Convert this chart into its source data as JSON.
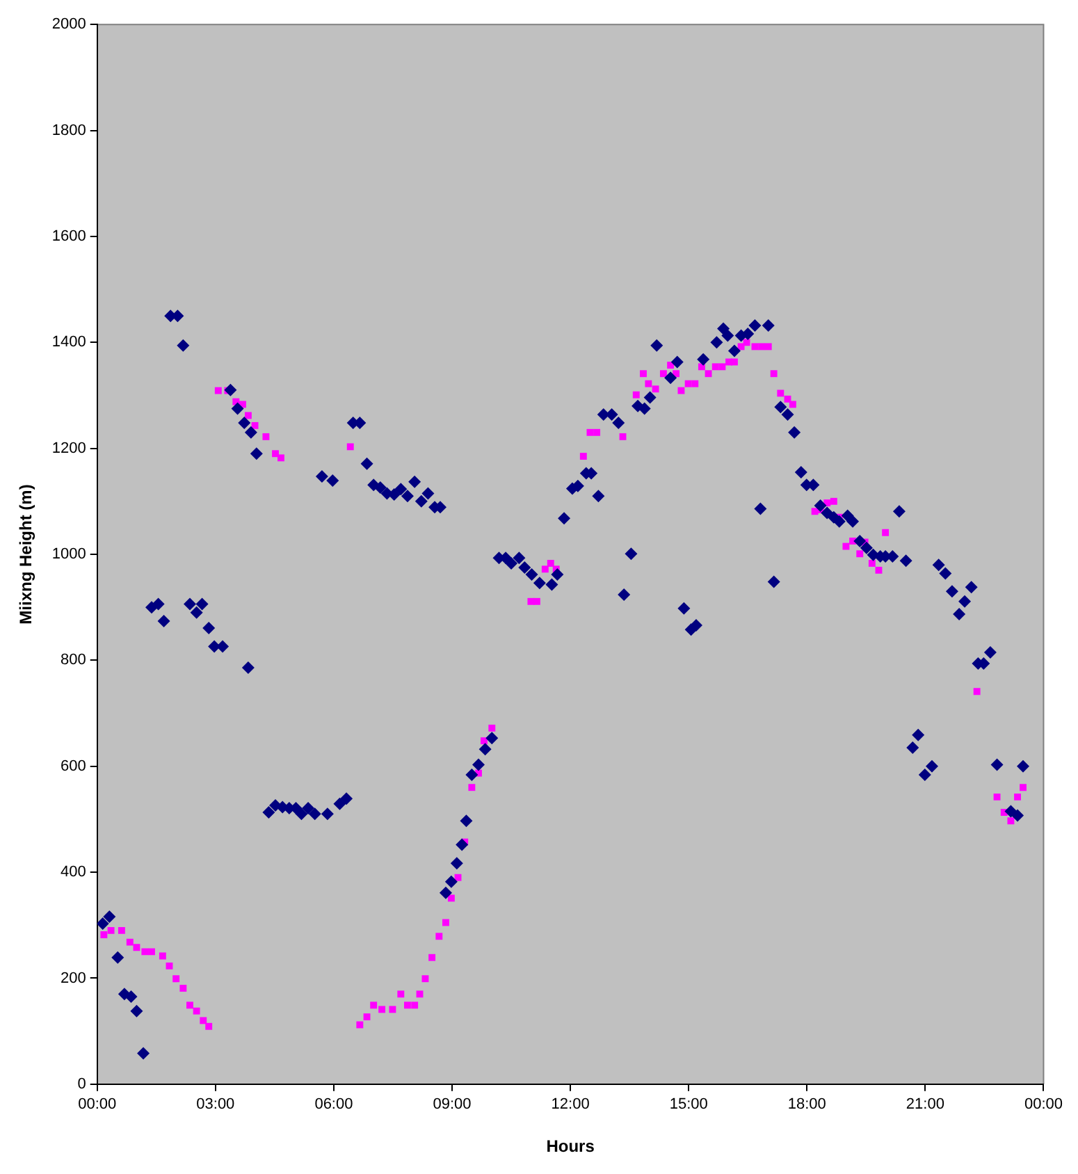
{
  "chart_data": {
    "type": "scatter",
    "xlabel": "Hours",
    "ylabel": "Miixng Height (m)",
    "xlim": [
      0,
      24
    ],
    "xticks": [
      {
        "value": 0,
        "label": "00:00"
      },
      {
        "value": 3,
        "label": "03:00"
      },
      {
        "value": 6,
        "label": "06:00"
      },
      {
        "value": 9,
        "label": "09:00"
      },
      {
        "value": 12,
        "label": "12:00"
      },
      {
        "value": 15,
        "label": "15:00"
      },
      {
        "value": 18,
        "label": "18:00"
      },
      {
        "value": 21,
        "label": "21:00"
      },
      {
        "value": 24,
        "label": "00:00"
      }
    ],
    "ylim": [
      0,
      2000
    ],
    "yticks": [
      0,
      200,
      400,
      600,
      800,
      1000,
      1200,
      1400,
      1600,
      1800,
      2000
    ],
    "grid": false,
    "legend": false,
    "series": [
      {
        "color": "#000080",
        "marker": "diamond",
        "x": [
          0.14,
          0.31,
          0.52,
          0.69,
          0.86,
          1.0,
          1.17,
          1.38,
          1.55,
          1.69,
          1.86,
          2.04,
          2.18,
          2.35,
          2.52,
          2.66,
          2.83,
          2.97,
          3.18,
          3.38,
          3.56,
          3.73,
          3.83,
          3.9,
          4.04,
          4.35,
          4.52,
          4.7,
          4.87,
          5.04,
          5.18,
          5.35,
          5.52,
          5.7,
          5.84,
          5.97,
          6.15,
          6.32,
          6.49,
          6.66,
          6.84,
          7.01,
          7.18,
          7.35,
          7.53,
          7.7,
          7.87,
          8.05,
          8.22,
          8.39,
          8.56,
          8.7,
          8.84,
          8.98,
          9.12,
          9.25,
          9.36,
          9.5,
          9.67,
          9.84,
          10.01,
          10.19,
          10.36,
          10.5,
          10.7,
          10.84,
          11.02,
          11.22,
          11.53,
          11.67,
          11.84,
          12.05,
          12.19,
          12.4,
          12.53,
          12.71,
          12.84,
          13.05,
          13.22,
          13.36,
          13.54,
          13.71,
          13.88,
          14.02,
          14.19,
          14.54,
          14.71,
          14.88,
          15.06,
          15.19,
          15.37,
          15.71,
          15.88,
          15.99,
          16.16,
          16.33,
          16.5,
          16.68,
          16.82,
          17.02,
          17.16,
          17.33,
          17.51,
          17.68,
          17.85,
          17.99,
          18.16,
          18.34,
          18.51,
          18.68,
          18.82,
          19.03,
          19.16,
          19.34,
          19.51,
          19.68,
          19.86,
          19.99,
          20.17,
          20.34,
          20.51,
          20.68,
          20.82,
          20.99,
          21.17,
          21.34,
          21.51,
          21.68,
          21.86,
          22.0,
          22.17,
          22.34,
          22.48,
          22.65,
          22.82,
          23.17,
          23.34,
          23.48
        ],
        "values": [
          303,
          316,
          239,
          170,
          165,
          138,
          58,
          900,
          906,
          874,
          1450,
          1450,
          1394,
          906,
          890,
          906,
          861,
          826,
          826,
          1310,
          1275,
          1248,
          786,
          1230,
          1190,
          513,
          526,
          523,
          521,
          521,
          510,
          521,
          510,
          1147,
          510,
          1139,
          529,
          539,
          1248,
          1248,
          1171,
          1131,
          1126,
          1115,
          1113,
          1123,
          1110,
          1137,
          1100,
          1115,
          1089,
          1089,
          361,
          382,
          417,
          452,
          497,
          584,
          603,
          632,
          653,
          993,
          993,
          983,
          993,
          975,
          962,
          946,
          943,
          962,
          1068,
          1124,
          1129,
          1153,
          1153,
          1110,
          1264,
          1264,
          1248,
          924,
          1001,
          1280,
          1275,
          1296,
          1394,
          1333,
          1363,
          898,
          858,
          866,
          1368,
          1400,
          1426,
          1413,
          1384,
          1413,
          1416,
          1432,
          1086,
          1432,
          948,
          1278,
          1264,
          1230,
          1155,
          1131,
          1131,
          1092,
          1078,
          1070,
          1062,
          1073,
          1062,
          1025,
          1012,
          999,
          996,
          996,
          996,
          1081,
          988,
          635,
          659,
          584,
          600,
          980,
          964,
          930,
          887,
          911,
          938,
          794,
          794,
          815,
          603,
          515,
          507,
          600
        ]
      },
      {
        "color": "#ff00ff",
        "marker": "square",
        "x": [
          0.17,
          0.35,
          0.62,
          0.83,
          1.0,
          1.21,
          1.38,
          1.66,
          1.83,
          2.0,
          2.18,
          2.35,
          2.52,
          2.69,
          2.83,
          3.07,
          3.31,
          3.52,
          3.69,
          3.83,
          4.0,
          4.28,
          4.52,
          4.66,
          6.42,
          6.66,
          6.84,
          7.01,
          7.22,
          7.49,
          7.7,
          7.87,
          8.05,
          8.18,
          8.32,
          8.49,
          8.67,
          8.84,
          8.98,
          9.15,
          9.32,
          9.5,
          9.67,
          9.81,
          10.01,
          11.0,
          11.15,
          11.36,
          11.5,
          11.64,
          12.33,
          12.5,
          12.67,
          13.33,
          13.67,
          13.85,
          13.98,
          14.16,
          14.36,
          14.54,
          14.68,
          14.81,
          14.99,
          15.16,
          15.33,
          15.5,
          15.68,
          15.85,
          16.02,
          16.16,
          16.33,
          16.47,
          16.68,
          16.85,
          17.02,
          17.16,
          17.33,
          17.51,
          17.64,
          18.2,
          18.34,
          18.51,
          18.68,
          18.82,
          18.99,
          19.16,
          19.34,
          19.47,
          19.65,
          19.82,
          19.99,
          22.31,
          22.82,
          23.0,
          23.17,
          23.34,
          23.48
        ],
        "values": [
          282,
          290,
          290,
          268,
          258,
          250,
          250,
          242,
          223,
          199,
          181,
          149,
          138,
          120,
          109,
          1309,
          1309,
          1288,
          1283,
          1262,
          1243,
          1222,
          1190,
          1182,
          1203,
          112,
          127,
          149,
          141,
          141,
          170,
          149,
          149,
          170,
          199,
          239,
          279,
          305,
          351,
          390,
          457,
          560,
          587,
          648,
          672,
          911,
          911,
          972,
          983,
          972,
          1185,
          1230,
          1230,
          1222,
          1301,
          1341,
          1322,
          1312,
          1341,
          1357,
          1341,
          1309,
          1322,
          1322,
          1354,
          1341,
          1354,
          1354,
          1363,
          1363,
          1392,
          1400,
          1392,
          1392,
          1392,
          1341,
          1304,
          1293,
          1283,
          1081,
          1084,
          1097,
          1100,
          1070,
          1015,
          1025,
          1001,
          1023,
          983,
          970,
          1041,
          741,
          542,
          513,
          497,
          542,
          560
        ]
      }
    ]
  }
}
